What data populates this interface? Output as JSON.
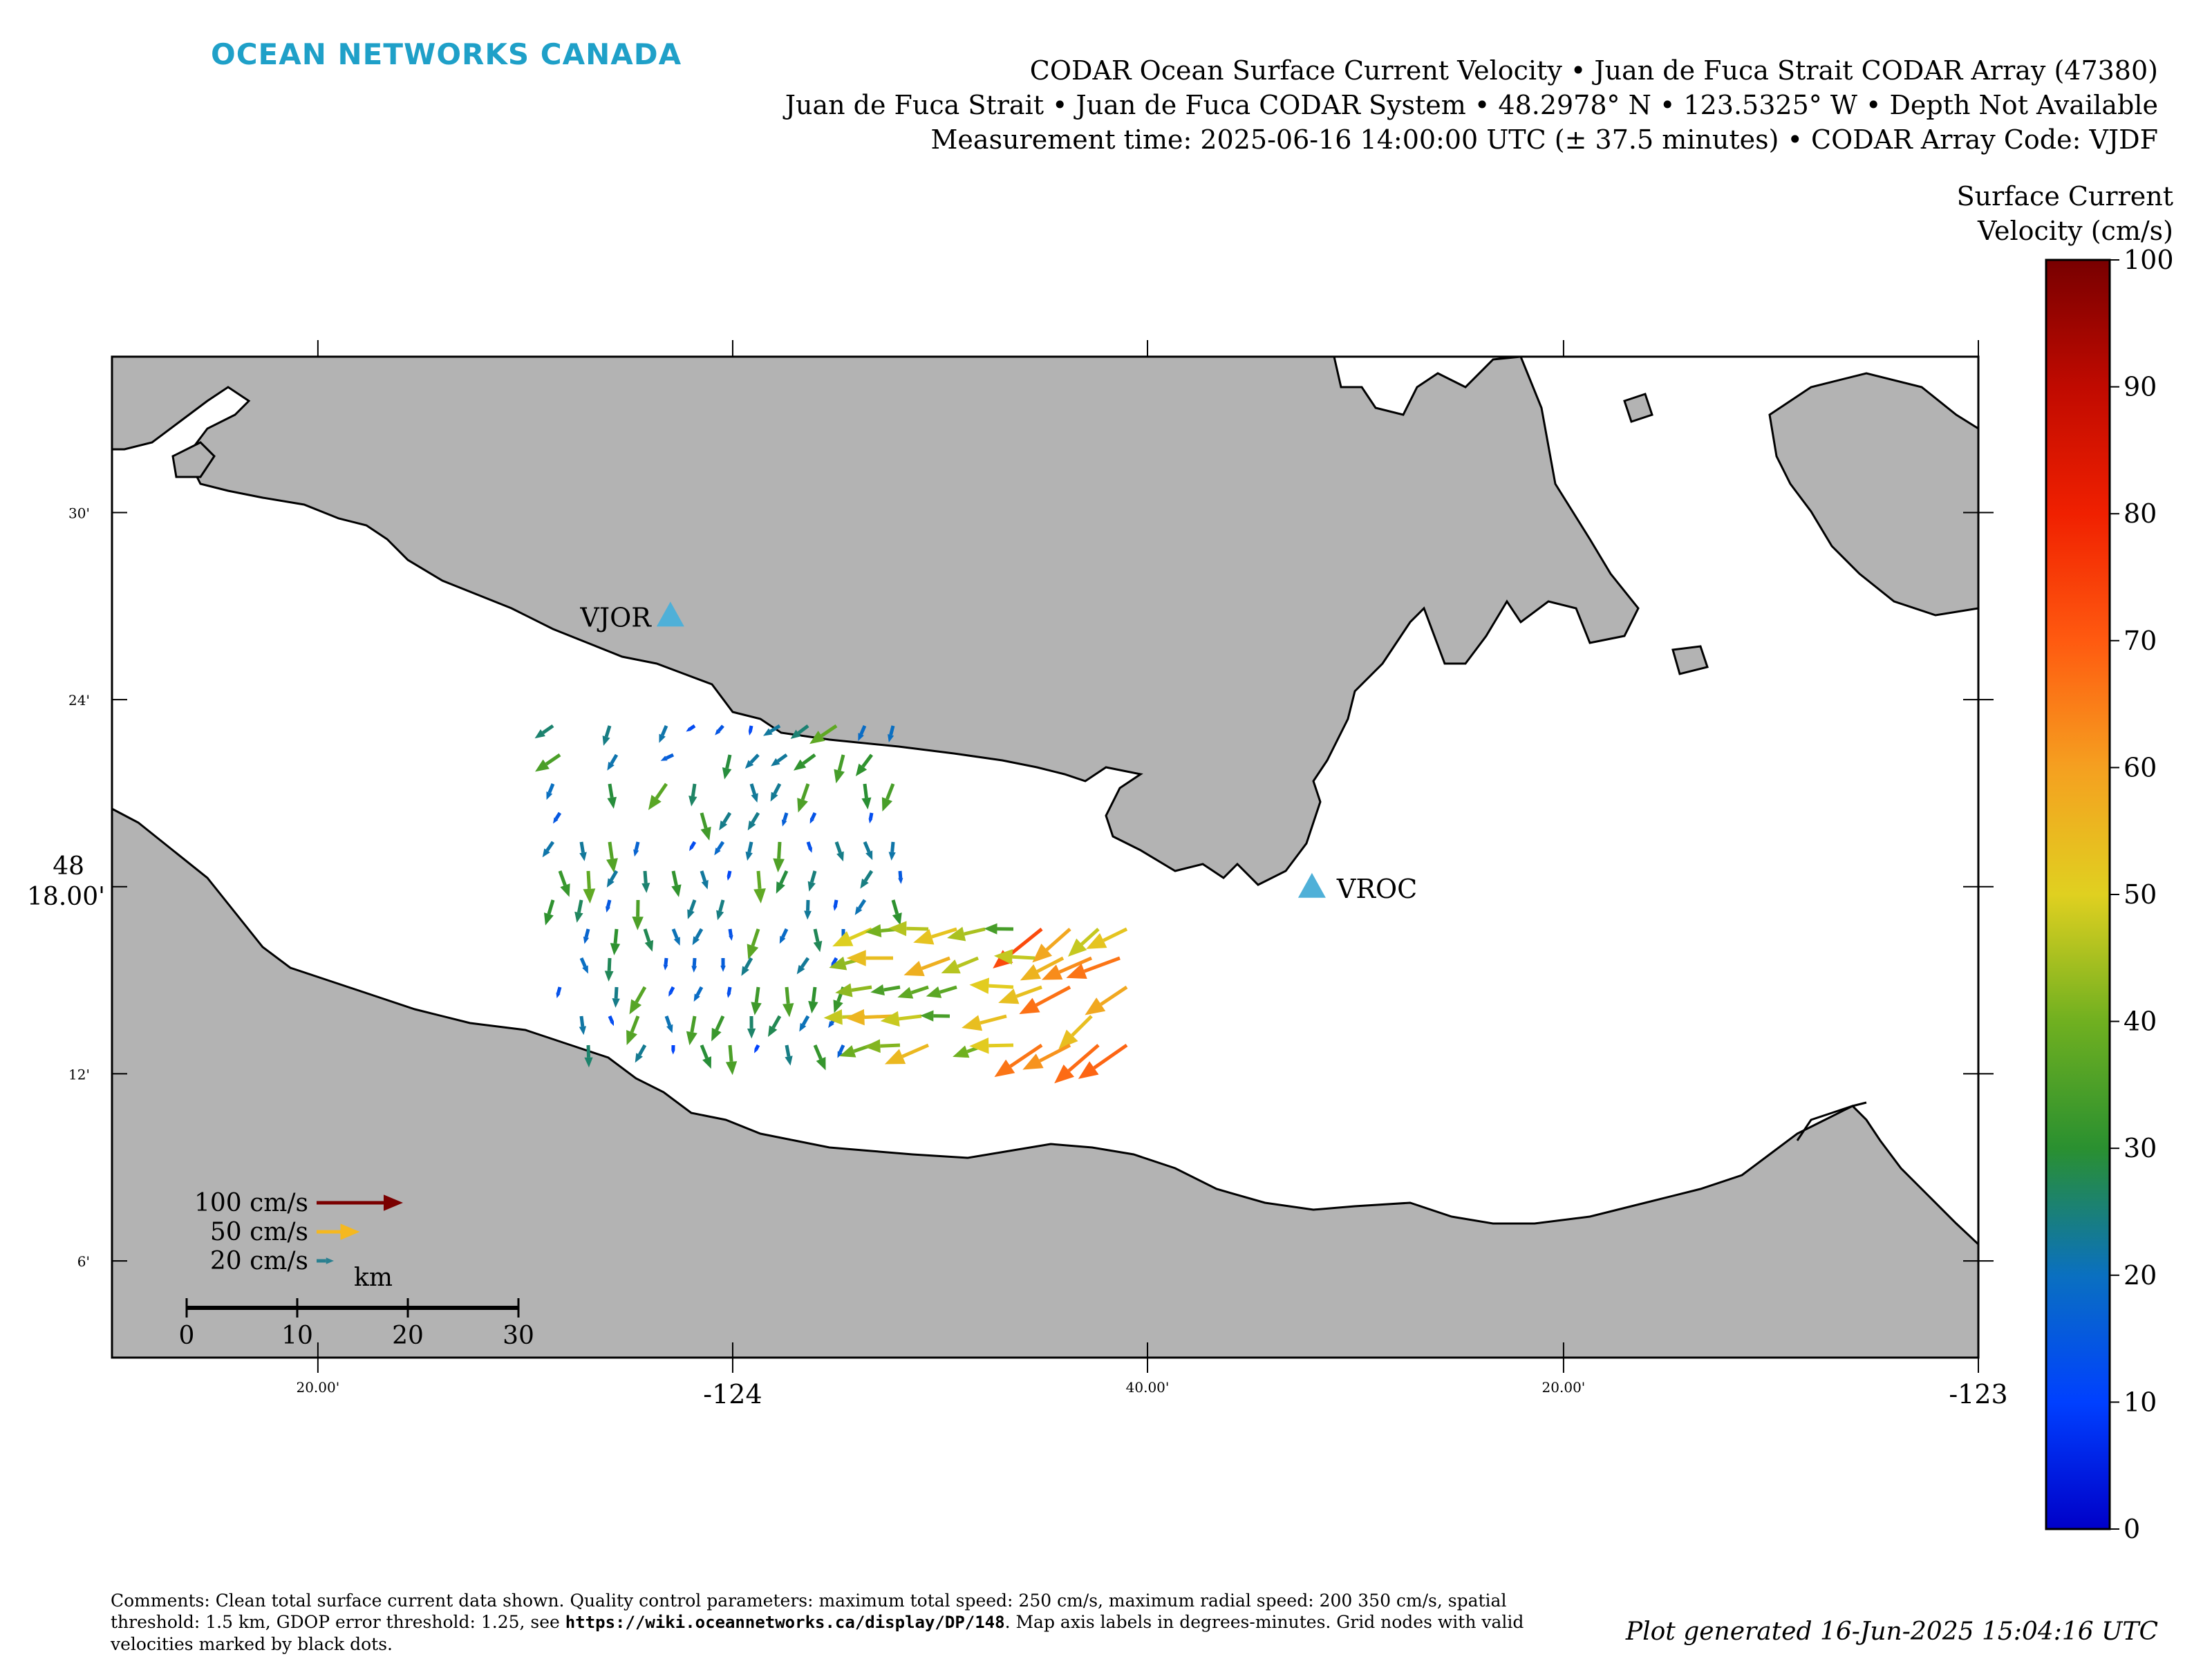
{
  "header": {
    "brand": "OCEAN NETWORKS CANADA",
    "title_line1": "CODAR Ocean Surface Current Velocity • Juan de Fuca Strait CODAR Array (47380)",
    "title_line2": "Juan de Fuca Strait • Juan de Fuca CODAR System • 48.2978° N • 123.5325° W • Depth Not Available",
    "title_line3": "Measurement time: 2025-06-16 14:00:00 UTC (± 37.5 minutes) • CODAR Array Code: VJDF"
  },
  "map": {
    "land_color": "#b3b3b3",
    "water_color": "#ffffff",
    "y_ticks": [
      {
        "label": "30'",
        "lat": 48.5
      },
      {
        "label": "24'",
        "lat": 48.4
      },
      {
        "label": "48",
        "label2": "18.00'",
        "lat": 48.3
      },
      {
        "label": "12'",
        "lat": 48.2
      },
      {
        "label": "6'",
        "lat": 48.1
      }
    ],
    "x_ticks": [
      {
        "label": "20.00'",
        "lon": -124.333,
        "small": true
      },
      {
        "label": "-124",
        "lon": -124.0,
        "small": false
      },
      {
        "label": "40.00'",
        "lon": -123.667,
        "small": true
      },
      {
        "label": "20.00'",
        "lon": -123.333,
        "small": true
      },
      {
        "label": "-123",
        "lon": -123.0,
        "small": false
      }
    ],
    "stations": [
      {
        "name": "VJOR",
        "lon": -124.05,
        "lat": 48.445,
        "color": "#4fb0d8"
      },
      {
        "name": "VROC",
        "lon": -123.535,
        "lat": 48.3,
        "color": "#4fb0d8"
      }
    ],
    "legend": {
      "entries": [
        {
          "label": "100 cm/s",
          "speed": 100,
          "color": "#7a0000"
        },
        {
          "label": "50 cm/s",
          "speed": 50,
          "color": "#f5b820"
        },
        {
          "label": "20 cm/s",
          "speed": 20,
          "color": "#2a8090"
        }
      ],
      "scale_unit": "km",
      "scale_ticks": [
        "0",
        "10",
        "20",
        "30"
      ]
    }
  },
  "colorbar": {
    "title_line1": "Surface Current",
    "title_line2": "Velocity (cm/s)",
    "ticks": [
      "0",
      "10",
      "20",
      "30",
      "40",
      "50",
      "60",
      "70",
      "80",
      "90",
      "100"
    ],
    "min": 0,
    "max": 100
  },
  "footer": {
    "comments_before_url": "Comments: Clean total surface current data shown. Quality control parameters: maximum total speed: 250 cm/s, maximum radial speed: 200 350 cm/s, spatial threshold: 1.5 km, GDOP error threshold: 1.25, see",
    "url": "https://wiki.oceannetworks.ca/display/DP/148",
    "comments_after_url": ". Map axis labels in degrees-minutes. Grid nodes with valid velocities marked by black dots.",
    "generated": "Plot generated 16-Jun-2025 15:04:16 UTC"
  }
}
